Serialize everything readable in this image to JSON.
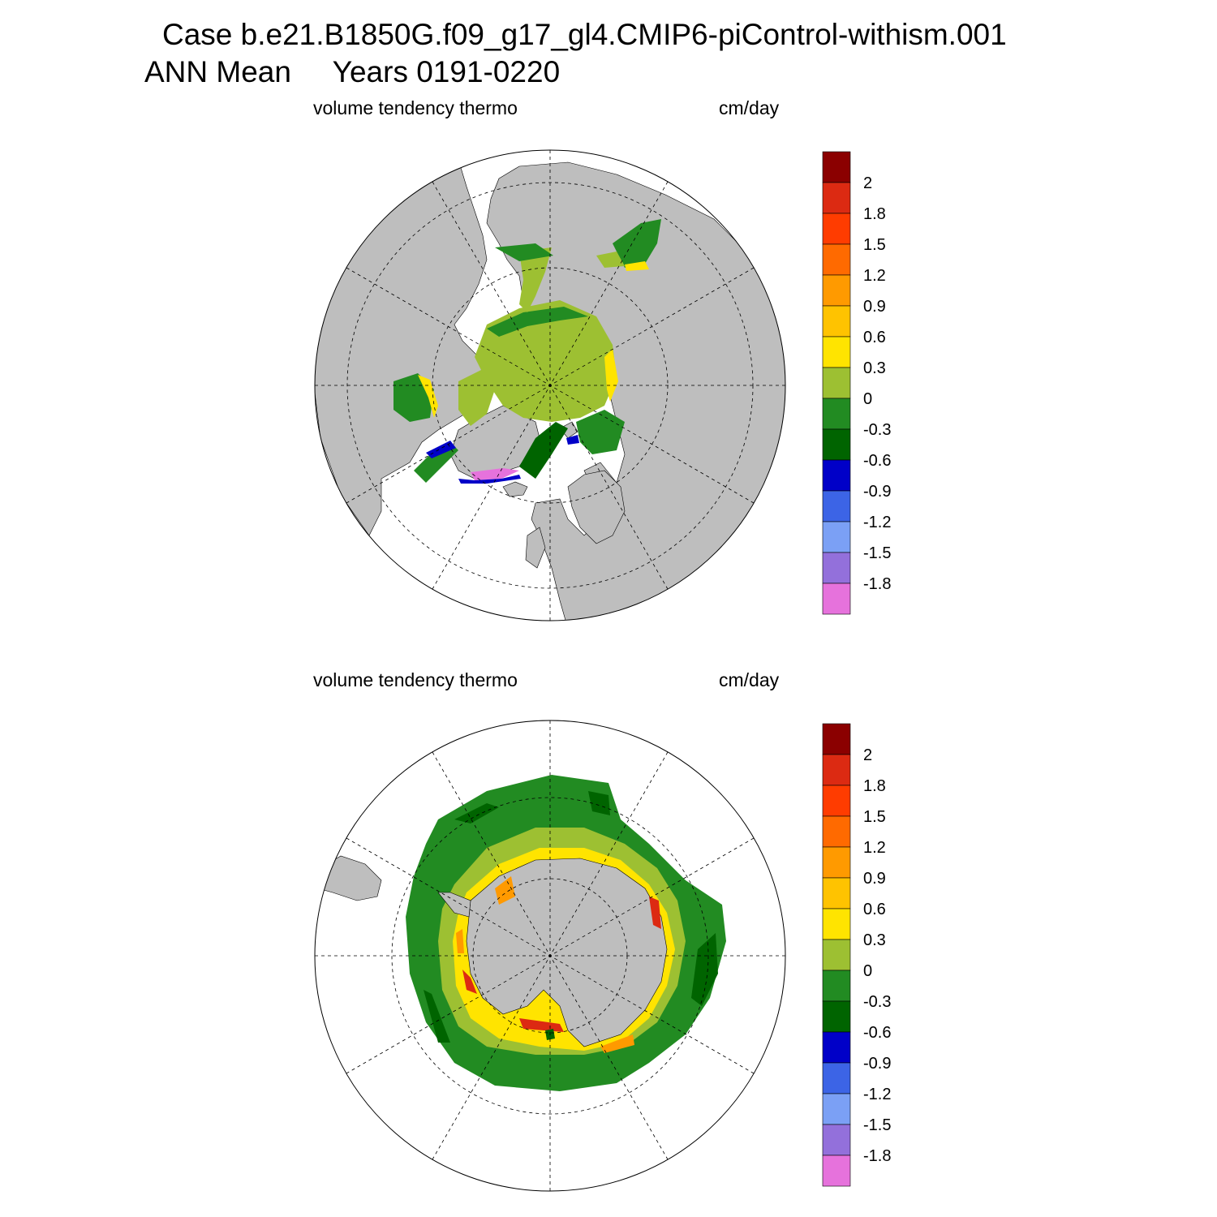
{
  "title": {
    "line1": "Case b.e21.B1850G.f09_g17_gl4.CMIP6-piControl-withism.001",
    "line2": "ANN Mean     Years 0191-0220"
  },
  "panels": [
    {
      "id": "north",
      "variable_label": "volume tendency thermo",
      "units_label": "cm/day"
    },
    {
      "id": "south",
      "variable_label": "volume tendency thermo",
      "units_label": "cm/day"
    }
  ],
  "colorbar": {
    "labels": [
      "2",
      "1.8",
      "1.5",
      "1.2",
      "0.9",
      "0.6",
      "0.3",
      "0",
      "-0.3",
      "-0.6",
      "-0.9",
      "-1.2",
      "-1.5",
      "-1.8"
    ],
    "colors": [
      "#8b0000",
      "#dc2a12",
      "#ff3c00",
      "#ff6a00",
      "#ff9a00",
      "#ffc300",
      "#ffe400",
      "#9dc032",
      "#228b22",
      "#006400",
      "#0000c8",
      "#3c64e6",
      "#7ba0f5",
      "#9370db",
      "#e672dc"
    ]
  },
  "map_colors": {
    "land": "#bebebe",
    "ocean_no_ice": "#ffffff",
    "ice_near_zero": "#9dc032",
    "ice_weak_loss": "#228b22",
    "ice_strong_loss": "#006400",
    "ice_margin_growth": "#ffe400",
    "coast_growth": "#ff9a00",
    "coast_strong_growth": "#dc2a12",
    "melt_blue": "#0000c8",
    "melt_pink": "#e672dc"
  }
}
